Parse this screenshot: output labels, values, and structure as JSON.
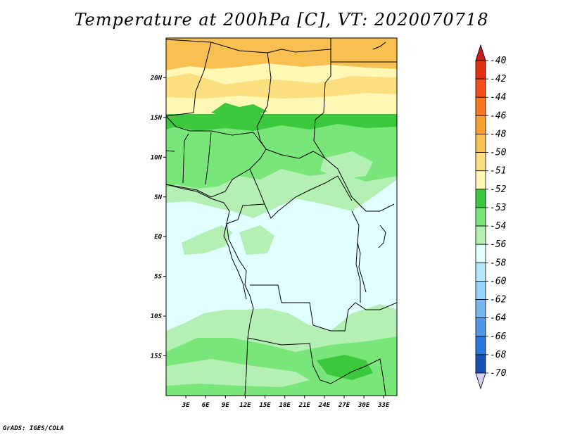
{
  "title": "Temperature at 200hPa [C], VT: 2020070718",
  "footer": "GrADS: IGES/COLA",
  "map": {
    "lon_range": [
      0,
      35
    ],
    "lat_range": [
      -20,
      25
    ],
    "lon_ticks": [
      {
        "value": 3,
        "label": "3E"
      },
      {
        "value": 6,
        "label": "6E"
      },
      {
        "value": 9,
        "label": "9E"
      },
      {
        "value": 12,
        "label": "12E"
      },
      {
        "value": 15,
        "label": "15E"
      },
      {
        "value": 18,
        "label": "18E"
      },
      {
        "value": 21,
        "label": "21E"
      },
      {
        "value": 24,
        "label": "24E"
      },
      {
        "value": 27,
        "label": "27E"
      },
      {
        "value": 30,
        "label": "30E"
      },
      {
        "value": 33,
        "label": "33E"
      }
    ],
    "lat_ticks": [
      {
        "value": 20,
        "label": "20N"
      },
      {
        "value": 15,
        "label": "15N"
      },
      {
        "value": 10,
        "label": "10N"
      },
      {
        "value": 5,
        "label": "5N"
      },
      {
        "value": 0,
        "label": "EQ"
      },
      {
        "value": -5,
        "label": "5S"
      },
      {
        "value": -10,
        "label": "10S"
      },
      {
        "value": -15,
        "label": "15S"
      }
    ]
  },
  "colorbar": {
    "levels": [
      {
        "label": "-40",
        "color": "#e03010"
      },
      {
        "label": "-42",
        "color": "#f05018"
      },
      {
        "label": "-44",
        "color": "#f87820"
      },
      {
        "label": "-46",
        "color": "#f8a030"
      },
      {
        "label": "-48",
        "color": "#f8c050"
      },
      {
        "label": "-50",
        "color": "#fce080"
      },
      {
        "label": "-51",
        "color": "#fff8b4"
      },
      {
        "label": "-52",
        "color": "#3cc83c"
      },
      {
        "label": "-53",
        "color": "#78e678"
      },
      {
        "label": "-54",
        "color": "#b4f0b4"
      },
      {
        "label": "-56",
        "color": "#e1ffff"
      },
      {
        "label": "-58",
        "color": "#b4e6fa"
      },
      {
        "label": "-60",
        "color": "#96d2fa"
      },
      {
        "label": "-62",
        "color": "#78b4f0"
      },
      {
        "label": "-64",
        "color": "#5096e6"
      },
      {
        "label": "-66",
        "color": "#2878dc"
      },
      {
        "label": "-68",
        "color": "#1450b4"
      },
      {
        "label": "-70",
        "color": "#0a2882"
      }
    ],
    "top_triangle_color": "#c81e1e",
    "bottom_triangle_color": "#d2d2f0"
  }
}
